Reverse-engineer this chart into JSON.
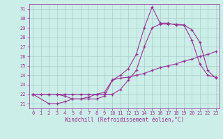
{
  "xlabel": "Windchill (Refroidissement éolien,°C)",
  "bg_color": "#cceee8",
  "line_color": "#993399",
  "grid_color": "#aacccc",
  "xlim": [
    -0.5,
    23.5
  ],
  "ylim": [
    20.5,
    31.5
  ],
  "yticks": [
    21,
    22,
    23,
    24,
    25,
    26,
    27,
    28,
    29,
    30,
    31
  ],
  "xticks": [
    0,
    1,
    2,
    3,
    4,
    5,
    6,
    7,
    8,
    9,
    10,
    11,
    12,
    13,
    14,
    15,
    16,
    17,
    18,
    19,
    20,
    21,
    22,
    23
  ],
  "line1_x": [
    0,
    1,
    2,
    3,
    4,
    5,
    6,
    7,
    8,
    9,
    10,
    11,
    12,
    13,
    14,
    15,
    16,
    17,
    18,
    19,
    20,
    21,
    22,
    23
  ],
  "line1_y": [
    22.0,
    22.0,
    22.0,
    22.0,
    21.8,
    21.5,
    21.5,
    21.5,
    21.5,
    21.8,
    23.5,
    23.7,
    23.8,
    24.0,
    24.2,
    24.5,
    24.8,
    25.0,
    25.2,
    25.5,
    25.7,
    26.0,
    26.2,
    26.5
  ],
  "line2_x": [
    0,
    2,
    3,
    4,
    5,
    6,
    7,
    8,
    9,
    10,
    11,
    12,
    13,
    14,
    15,
    16,
    17,
    18,
    19,
    20,
    21,
    22,
    23
  ],
  "line2_y": [
    22.0,
    21.0,
    21.0,
    21.2,
    21.5,
    21.5,
    21.7,
    22.0,
    22.2,
    23.5,
    24.0,
    24.7,
    26.2,
    29.0,
    31.2,
    29.5,
    29.5,
    29.3,
    29.3,
    27.7,
    25.2,
    24.0,
    23.8
  ],
  "line3_x": [
    0,
    2,
    3,
    4,
    5,
    6,
    7,
    8,
    9,
    10,
    11,
    12,
    13,
    14,
    15,
    16,
    17,
    18,
    19,
    20,
    21,
    22,
    23
  ],
  "line3_y": [
    22.0,
    22.0,
    22.0,
    22.0,
    22.0,
    22.0,
    22.0,
    22.0,
    22.0,
    22.0,
    22.5,
    23.5,
    24.5,
    27.0,
    29.0,
    29.4,
    29.4,
    29.4,
    29.3,
    28.8,
    27.5,
    24.5,
    23.7
  ]
}
